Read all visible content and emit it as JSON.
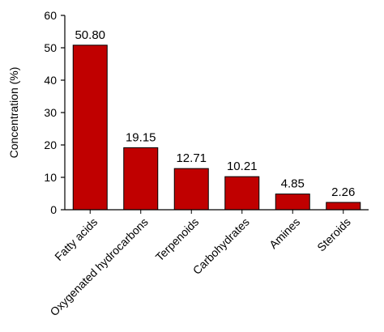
{
  "chart_data": {
    "type": "bar",
    "categories": [
      "Fatty acids",
      "Oxygenated hydrocarbons",
      "Terpenoids",
      "Carbohydrates",
      "Amines",
      "Steroids"
    ],
    "values": [
      50.8,
      19.15,
      12.71,
      10.21,
      4.85,
      2.26
    ],
    "value_labels": [
      "50.80",
      "19.15",
      "12.71",
      "10.21",
      "4.85",
      "2.26"
    ],
    "ylabel": "Concentration (%)",
    "xlabel": "",
    "title": "",
    "ylim": [
      0,
      60
    ],
    "yticks": [
      0,
      10,
      20,
      30,
      40,
      50,
      60
    ],
    "grid": false,
    "bar_color": "#c00000",
    "bar_edge_color": "#000000"
  }
}
